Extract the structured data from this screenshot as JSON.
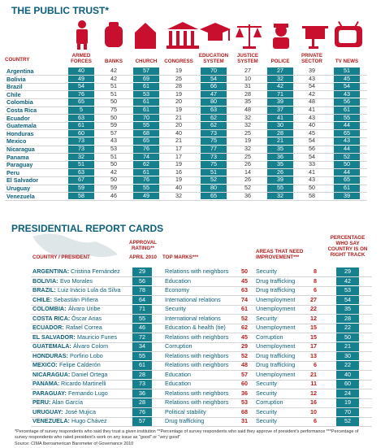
{
  "trust": {
    "title": "THE PUBLIC TRUST*",
    "country_header": "COUNTRY",
    "columns": [
      "ARMED FORCES",
      "BANKS",
      "CHURCH",
      "CONGRESS",
      "EDUCATION SYSTEM",
      "JUSTICE SYSTEM",
      "POLICE",
      "PRIVATE SECTOR",
      "TV NEWS"
    ],
    "rows": [
      {
        "country": "Argentina",
        "values": [
          40,
          42,
          57,
          19,
          70,
          27,
          27,
          39,
          51
        ]
      },
      {
        "country": "Bolivia",
        "values": [
          49,
          42,
          69,
          25,
          54,
          10,
          32,
          43,
          45
        ]
      },
      {
        "country": "Brazil",
        "values": [
          54,
          51,
          61,
          28,
          66,
          31,
          42,
          54,
          54
        ]
      },
      {
        "country": "Chile",
        "values": [
          76,
          51,
          53,
          19,
          47,
          28,
          71,
          42,
          43
        ]
      },
      {
        "country": "Colombia",
        "values": [
          65,
          50,
          61,
          20,
          80,
          35,
          39,
          48,
          56
        ]
      },
      {
        "country": "Costa Rica",
        "values": [
          5,
          75,
          61,
          19,
          63,
          48,
          37,
          41,
          61
        ]
      },
      {
        "country": "Ecuador",
        "values": [
          63,
          50,
          70,
          21,
          62,
          32,
          41,
          43,
          55
        ]
      },
      {
        "country": "Guatemala",
        "values": [
          61,
          59,
          55,
          20,
          62,
          32,
          30,
          40,
          44
        ]
      },
      {
        "country": "Honduras",
        "values": [
          60,
          57,
          68,
          40,
          73,
          25,
          28,
          45,
          65
        ]
      },
      {
        "country": "Mexico",
        "values": [
          73,
          43,
          65,
          21,
          75,
          19,
          21,
          54,
          43
        ]
      },
      {
        "country": "Nicaragua",
        "values": [
          73,
          53,
          76,
          17,
          77,
          32,
          35,
          56,
          44
        ]
      },
      {
        "country": "Panama",
        "values": [
          32,
          51,
          74,
          17,
          73,
          25,
          36,
          54,
          52
        ]
      },
      {
        "country": "Paraguay",
        "values": [
          51,
          50,
          62,
          19,
          75,
          26,
          35,
          33,
          50
        ]
      },
      {
        "country": "Peru",
        "values": [
          63,
          42,
          61,
          16,
          51,
          14,
          26,
          41,
          44
        ]
      },
      {
        "country": "El Salvador",
        "values": [
          67,
          50,
          76,
          19,
          52,
          26,
          39,
          43,
          65
        ]
      },
      {
        "country": "Uruguay",
        "values": [
          59,
          59,
          55,
          40,
          80,
          52,
          55,
          50,
          61
        ]
      },
      {
        "country": "Venezuela",
        "values": [
          58,
          46,
          49,
          32,
          65,
          36,
          32,
          58,
          39
        ]
      }
    ]
  },
  "report": {
    "title": "PRESIDENTIAL REPORT CARDS",
    "headers": {
      "country": "COUNTRY / PRESIDENT",
      "approval": "APPROVAL RATING**",
      "approval_date": "APRIL 2010",
      "top": "TOP MARKS***",
      "improve": "AREAS THAT NEED IMPROVEMENT***",
      "track": "PERCENTAGE WHO SAY COUNTRY IS ON RIGHT TRACK"
    },
    "rows": [
      {
        "country": "ARGENTINA:",
        "president": "Cristina Fernández",
        "approval": 29,
        "top": "Relations with neighbors",
        "top_score": 50,
        "improve": "Security",
        "improve_score": 8,
        "track": 29
      },
      {
        "country": "BOLIVIA:",
        "president": "Evo Morales",
        "approval": 56,
        "top": "Education",
        "top_score": 45,
        "improve": "Drug trafficking",
        "improve_score": 8,
        "track": 42
      },
      {
        "country": "BRAZIL:",
        "president": "Luiz Inácio Lula da Silva",
        "approval": 78,
        "top": "Economy",
        "top_score": 63,
        "improve": "Drug trafficking",
        "improve_score": 6,
        "track": 53
      },
      {
        "country": "CHILE:",
        "president": "Sebastián Piñera",
        "approval": 64,
        "top": "International relations",
        "top_score": 74,
        "improve": "Unemployment",
        "improve_score": 27,
        "track": 54
      },
      {
        "country": "COLOMBIA:",
        "president": "Álvaro Uribe",
        "approval": 71,
        "top": "Security",
        "top_score": 61,
        "improve": "Unemployment",
        "improve_score": 22,
        "track": 35
      },
      {
        "country": "COSTA RICA:",
        "president": "Óscar Arias",
        "approval": 55,
        "top": "International relations",
        "top_score": 52,
        "improve": "Security",
        "improve_score": 12,
        "track": 28
      },
      {
        "country": "ECUADOR:",
        "president": "Rafael Correa",
        "approval": 46,
        "top": "Education & health (tie)",
        "top_score": 62,
        "improve": "Unemployment",
        "improve_score": 15,
        "track": 22
      },
      {
        "country": "EL SALVADOR:",
        "president": "Mauricio Funes",
        "approval": 72,
        "top": "Relations with neighbors",
        "top_score": 45,
        "improve": "Corruption",
        "improve_score": 15,
        "track": 50
      },
      {
        "country": "GUATEMALA:",
        "president": "Álvaro Colom",
        "approval": 34,
        "top": "Corruption",
        "top_score": 29,
        "improve": "Unemployment",
        "improve_score": 17,
        "track": 21
      },
      {
        "country": "HONDURAS:",
        "president": "Porfirio Lobo",
        "approval": 55,
        "top": "Relations with neighbors",
        "top_score": 52,
        "improve": "Drug trafficking",
        "improve_score": 13,
        "track": 30
      },
      {
        "country": "MEXICO:",
        "president": "Felipe Calderón",
        "approval": 61,
        "top": "Relations with neighbors",
        "top_score": 48,
        "improve": "Drug trafficking",
        "improve_score": 6,
        "track": 22
      },
      {
        "country": "NICARAGUA:",
        "president": "Daniel Ortega",
        "approval": 28,
        "top": "Education",
        "top_score": 57,
        "improve": "Unemployment",
        "improve_score": 21,
        "track": 40
      },
      {
        "country": "PANAMA:",
        "president": "Ricardo Martinelli",
        "approval": 73,
        "top": "Education",
        "top_score": 60,
        "improve": "Security",
        "improve_score": 11,
        "track": 60
      },
      {
        "country": "PARAGUAY:",
        "president": "Fernando Lugo",
        "approval": 36,
        "top": "Relations with neighbors",
        "top_score": 36,
        "improve": "Security",
        "improve_score": 12,
        "track": 24
      },
      {
        "country": "PERU:",
        "president": "Alan García",
        "approval": 28,
        "top": "Relations with neighbors",
        "top_score": 53,
        "improve": "Corruption",
        "improve_score": 16,
        "track": 19
      },
      {
        "country": "URUGUAY:",
        "president": "José Mujica",
        "approval": 76,
        "top": "Political stability",
        "top_score": 68,
        "improve": "Security",
        "improve_score": 10,
        "track": 70
      },
      {
        "country": "VENEZUELA:",
        "president": "Hugo Chávez",
        "approval": 57,
        "top": "Drug trafficking",
        "top_score": 31,
        "improve": "Security",
        "improve_score": 6,
        "track": 52
      }
    ]
  },
  "footnote": "*Percentage of survey respondents who said they trust a given institution **Percentage of survey respondents who said they approve of president's performance ***Percentage of survey respondents who rated president's work on any issue as \"good\" or \"very good\"",
  "source": "Source: CIMA Iberoamerican Barometer of Governance 2010"
}
